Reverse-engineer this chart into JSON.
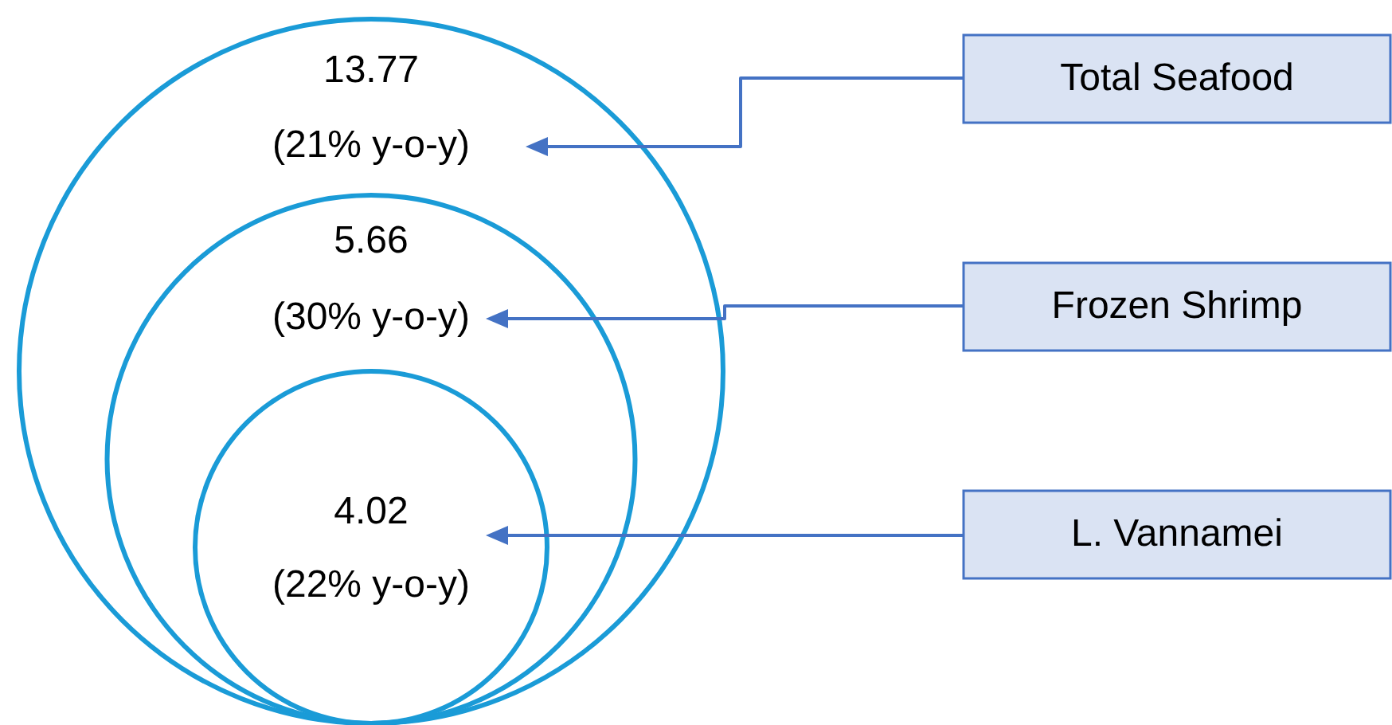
{
  "chart_data": {
    "type": "other",
    "categories": [
      "Total Seafood",
      "Frozen Shrimp",
      "L. Vannamei"
    ],
    "values": [
      13.77,
      5.66,
      4.02
    ],
    "data_labels": true,
    "annotations": [
      "(21% y-o-y)",
      "(30% y-o-y)",
      "(22% y-o-y)"
    ],
    "color": "#1a9bd7"
  }
}
